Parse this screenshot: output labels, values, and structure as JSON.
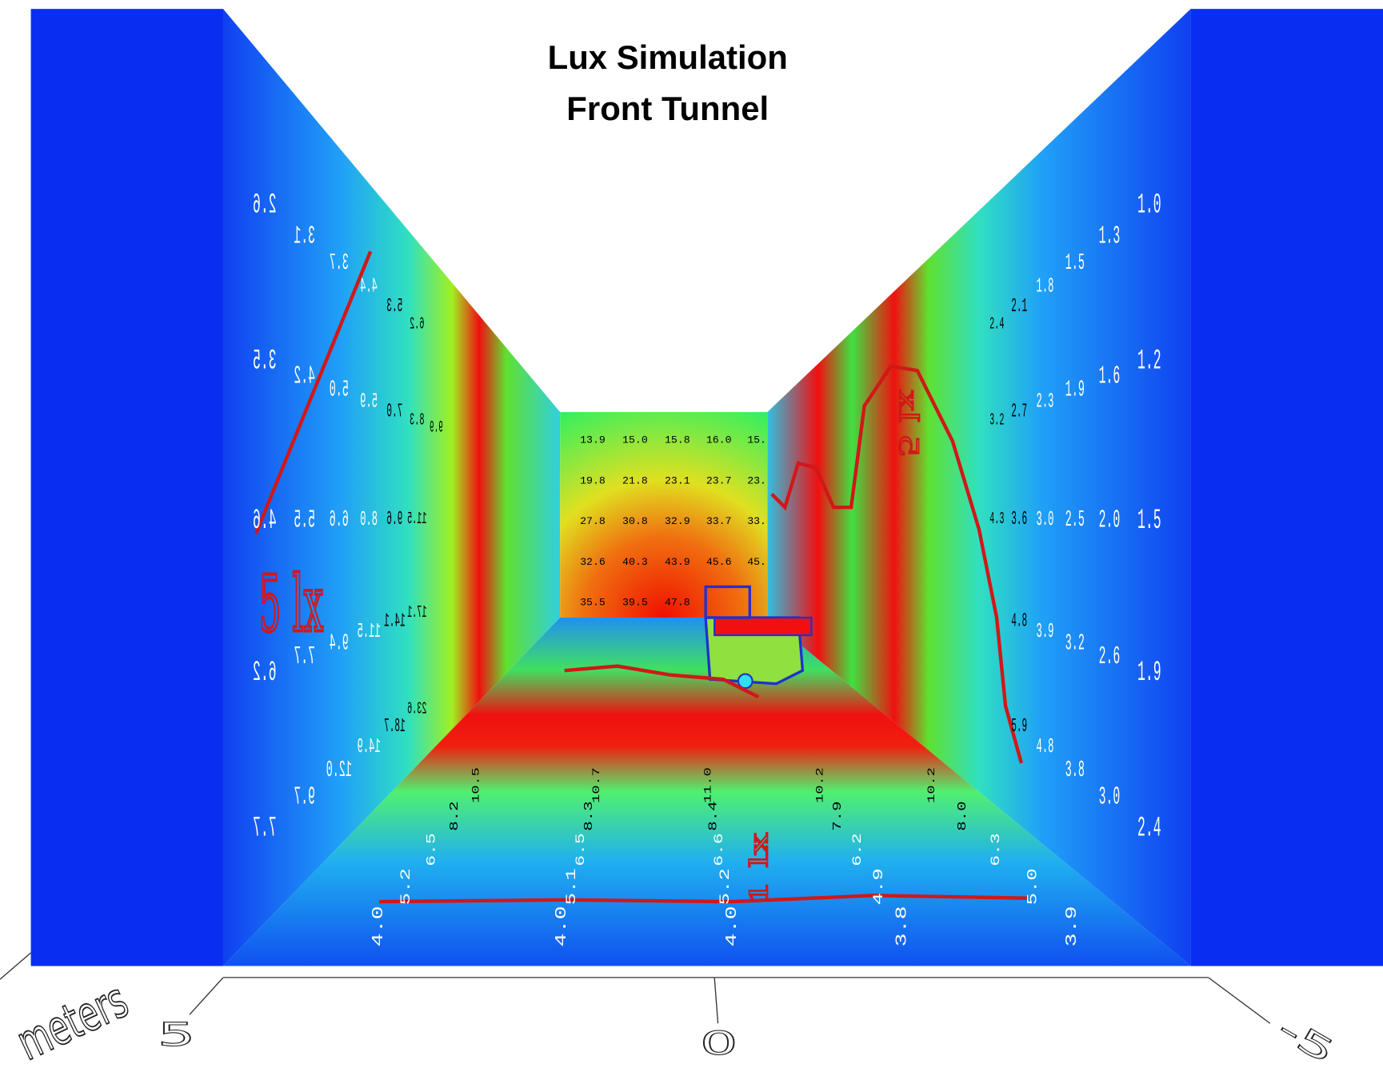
{
  "title_lines": [
    "Lux Simulation",
    "Front Tunnel"
  ],
  "left_wall": {
    "rows": [
      [
        "2.6",
        "3.1",
        "3.7",
        "4.4",
        "5.3",
        "6.2"
      ],
      [
        "3.5",
        "4.2",
        "5.0",
        "5.9",
        "7.0",
        "8.3",
        "9.9"
      ],
      [
        "4.6",
        "5.5",
        "6.6",
        "8.0",
        "9.6",
        "11.5"
      ],
      [
        "6.2",
        "7.7",
        "9.4",
        "11.5",
        "14.1",
        "17.1"
      ],
      [
        "7.7",
        "9.7",
        "12.0",
        "14.9",
        "18.7",
        "23.6"
      ]
    ],
    "annotation": "5 lx"
  },
  "right_wall": {
    "rows": [
      [
        "1.0",
        "1.3",
        "1.5",
        "1.8",
        "2.1",
        "2.4"
      ],
      [
        "1.2",
        "1.6",
        "1.9",
        "2.3",
        "2.7",
        "3.2"
      ],
      [
        "1.5",
        "2.0",
        "2.5",
        "3.0",
        "3.6",
        "4.3"
      ],
      [
        "1.9",
        "2.6",
        "3.2",
        "3.9",
        "4.8"
      ],
      [
        "2.4",
        "3.0",
        "3.8",
        "4.8",
        "5.9"
      ]
    ],
    "annotation": "5 lx"
  },
  "floor": {
    "rows": [
      [
        "4.0",
        "4.0",
        "4.0",
        "3.8",
        "3.9"
      ],
      [
        "5.2",
        "5.1",
        "5.2",
        "4.9",
        "5.0"
      ],
      [
        "6.5",
        "6.5",
        "6.6",
        "6.2",
        "6.3"
      ],
      [
        "8.2",
        "8.3",
        "8.4",
        "7.9",
        "8.0"
      ],
      [
        "10.5",
        "10.7",
        "11.0",
        "10.2",
        "10.2"
      ]
    ],
    "annotation": "1 lx"
  },
  "back_wall": {
    "rows": [
      [
        "13.9",
        "15.0",
        "15.8",
        "16.0",
        "15."
      ],
      [
        "19.8",
        "21.8",
        "23.1",
        "23.7",
        "23."
      ],
      [
        "27.8",
        "30.8",
        "32.9",
        "33.7",
        "33."
      ],
      [
        "32.6",
        "40.3",
        "43.9",
        "45.6",
        "45."
      ],
      [
        "35.5",
        "39.5",
        "47.8"
      ]
    ]
  },
  "axis": {
    "label": "meters",
    "ticks": [
      "5",
      "0",
      "-5"
    ]
  }
}
